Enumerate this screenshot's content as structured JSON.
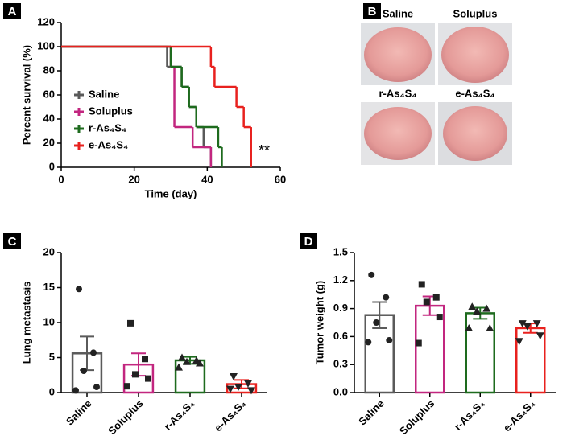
{
  "chart_data": [
    {
      "type": "survival",
      "panel": "A",
      "xlabel": "Time (day)",
      "ylabel": "Percent survival (%)",
      "annotation": "**",
      "xlim": [
        0,
        60
      ],
      "xticks": [
        0,
        20,
        40,
        60
      ],
      "ylim": [
        0,
        120
      ],
      "yticks": [
        0,
        20,
        40,
        60,
        80,
        100,
        120
      ],
      "series": [
        {
          "name": "Saline",
          "color": "#5a5a5a",
          "x": [
            0,
            29,
            33,
            35,
            37,
            39,
            41
          ],
          "values": [
            100,
            83.3,
            66.7,
            50,
            33.3,
            16.7,
            0
          ]
        },
        {
          "name": "Soluplus",
          "color": "#c2267f",
          "x": [
            0,
            30,
            31,
            36,
            41
          ],
          "values": [
            100,
            83.3,
            33.3,
            16.7,
            0
          ]
        },
        {
          "name": "r-As₄S₄",
          "color": "#1e6b1e",
          "x": [
            0,
            30,
            33,
            35,
            37,
            43,
            44
          ],
          "values": [
            100,
            83.3,
            66.7,
            50,
            33.3,
            16.7,
            0
          ]
        },
        {
          "name": "e-As₄S₄",
          "color": "#e8211e",
          "x": [
            0,
            41,
            42,
            48,
            50,
            52
          ],
          "values": [
            100,
            83.3,
            66.7,
            50,
            33.3,
            0
          ]
        }
      ]
    },
    {
      "type": "bar",
      "panel": "C",
      "ylabel": "Lung metastasis",
      "ylim": [
        0,
        20
      ],
      "yticks": [
        0,
        5,
        10,
        15,
        20
      ],
      "categories": [
        "Saline",
        "Soluplus",
        "r-As₄S₄",
        "e-As₄S₄"
      ],
      "colors": [
        "#5a5a5a",
        "#c2267f",
        "#1e6b1e",
        "#e8211e"
      ],
      "markers": [
        "circle",
        "square",
        "triangle-up",
        "triangle-down"
      ],
      "values": [
        5.6,
        4.0,
        4.6,
        1.2
      ],
      "errors": [
        2.4,
        1.6,
        0.5,
        0.6
      ],
      "points": [
        [
          14.8,
          5.7,
          3.1,
          0.8,
          0.3
        ],
        [
          9.9,
          4.8,
          2.6,
          2.0,
          0.9
        ],
        [
          5.0,
          4.6,
          4.4,
          4.2,
          3.6
        ],
        [
          2.3,
          1.3,
          0.8,
          0.3,
          0.5
        ]
      ]
    },
    {
      "type": "bar",
      "panel": "D",
      "ylabel": "Tumor weight (g)",
      "ylim": [
        0,
        1.5
      ],
      "yticks": [
        {
          "value": 0,
          "label": "0.0"
        },
        0.3,
        0.6,
        0.9,
        1.2,
        1.5
      ],
      "categories": [
        "Saline",
        "Soluplus",
        "r-As₄S₄",
        "e-As₄S₄"
      ],
      "colors": [
        "#5a5a5a",
        "#c2267f",
        "#1e6b1e",
        "#e8211e"
      ],
      "markers": [
        "circle",
        "square",
        "triangle-up",
        "triangle-down"
      ],
      "values": [
        0.83,
        0.93,
        0.85,
        0.69
      ],
      "errors": [
        0.14,
        0.1,
        0.06,
        0.05
      ],
      "points": [
        [
          1.26,
          1.02,
          0.75,
          0.56,
          0.54
        ],
        [
          1.16,
          1.02,
          0.97,
          0.81,
          0.53
        ],
        [
          0.92,
          0.9,
          0.87,
          0.69,
          0.69
        ],
        [
          0.74,
          0.74,
          0.71,
          0.61,
          0.55
        ]
      ]
    }
  ],
  "image_panel": {
    "panel": "B",
    "captions": [
      "Saline",
      "Soluplus",
      "r-As₄S₄",
      "e-As₄S₄"
    ]
  }
}
